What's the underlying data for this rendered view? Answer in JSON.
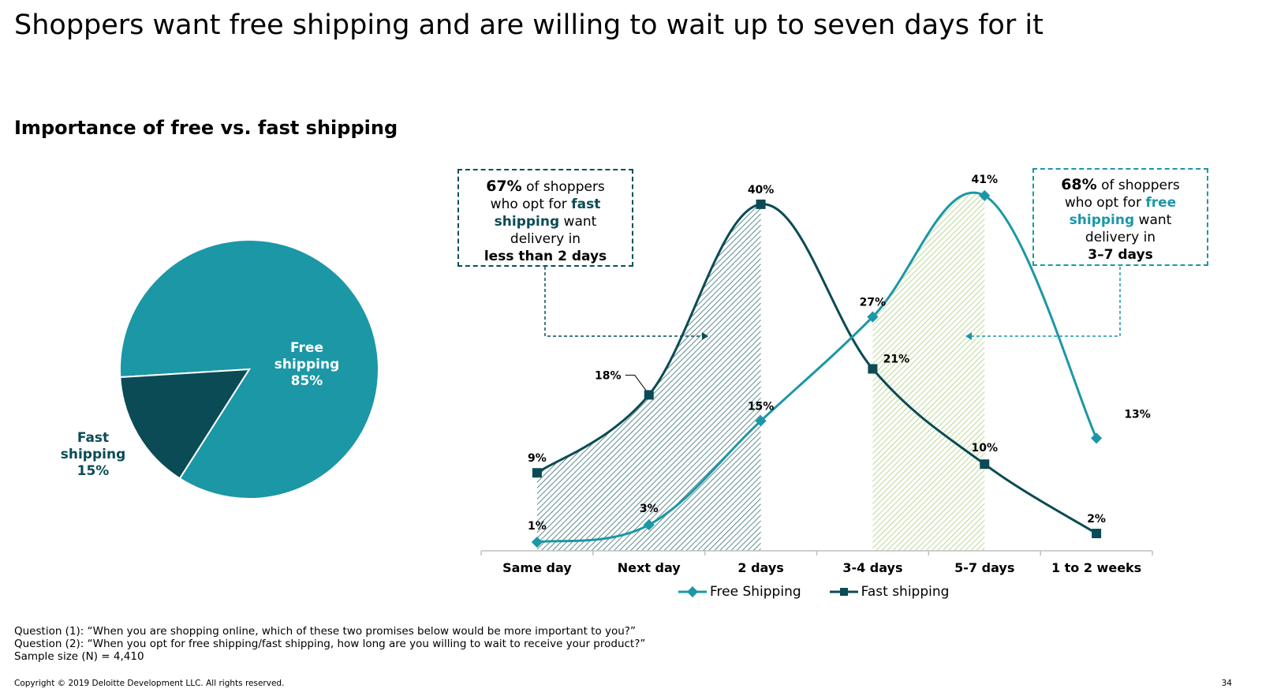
{
  "slide": {
    "title": "Shoppers want free shipping and are willing to wait up to seven days for it",
    "section_title": "Importance of free vs. fast shipping",
    "page_number": "34",
    "copyright": "Copyright © 2019 Deloitte Development LLC. All rights reserved.",
    "footnotes": [
      "Question (1): “When you are shopping online, which of these two promises below would be more important to you?”",
      "Question (2): “When you opt for free shipping/fast shipping, how long are you willing to wait to receive your product?”",
      "Sample size (N) = 4,410"
    ]
  },
  "callouts": {
    "fast": {
      "pct": "67%",
      "t1": " of shoppers",
      "t2": "who opt for ",
      "t2b": "fast",
      "t3b": "shipping",
      "t3": " want",
      "t4": "delivery in",
      "t5b": "less than 2 days"
    },
    "free": {
      "pct": "68%",
      "t1": " of shoppers",
      "t2": "who opt for ",
      "t2b": "free",
      "t3b": "shipping",
      "t3": " want",
      "t4": "delivery in",
      "t5b": "3–7 days"
    }
  },
  "colors": {
    "free": "#1b97a6",
    "fast": "#0b4b55",
    "fast_hatch": "#1f5f62",
    "free_hatch": "#b5d48a",
    "axis": "#bfbfbf",
    "fast_text": "#0b4b55",
    "free_text": "#1b97a6"
  },
  "chart_data": [
    {
      "type": "pie",
      "slices": [
        {
          "label_lines": [
            "Free",
            "shipping",
            "85%"
          ],
          "value": 85,
          "color": "#1b97a6",
          "text_color": "#ffffff"
        },
        {
          "label_lines": [
            "Fast",
            "shipping",
            "15%"
          ],
          "value": 15,
          "color": "#0b4b55",
          "text_color": "#0b4b55"
        }
      ]
    },
    {
      "type": "line",
      "categories": [
        "Same day",
        "Next day",
        "2 days",
        "3-4 days",
        "5-7 days",
        "1 to 2 weeks"
      ],
      "ylim": [
        0,
        45
      ],
      "series": [
        {
          "name": "Free Shipping",
          "values": [
            1,
            3,
            15,
            27,
            41,
            13
          ],
          "labels": [
            "1%",
            "3%",
            "15%",
            "27%",
            "41%",
            "13%"
          ],
          "marker": "diamond"
        },
        {
          "name": "Fast shipping",
          "values": [
            9,
            18,
            40,
            21,
            10,
            2
          ],
          "labels": [
            "9%",
            "18%",
            "40%",
            "21%",
            "10%",
            "2%"
          ],
          "marker": "square"
        }
      ]
    }
  ]
}
